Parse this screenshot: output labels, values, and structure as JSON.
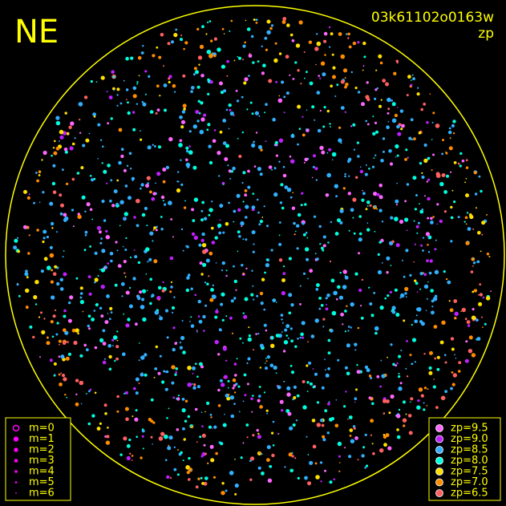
{
  "title": "NE",
  "image_id": "03k61102o0163w",
  "mode": "zp",
  "magnitude_legend": {
    "items": [
      "m=0",
      "m=1",
      "m=2",
      "m=3",
      "m=4",
      "m=5",
      "m=6"
    ]
  },
  "zp_legend": {
    "items": [
      {
        "label": "zp=9.5",
        "color": "#ff66ff"
      },
      {
        "label": "zp=9.0",
        "color": "#c020ff"
      },
      {
        "label": "zp=8.5",
        "color": "#30b0ff"
      },
      {
        "label": "zp=8.0",
        "color": "#00ffe0"
      },
      {
        "label": "zp=7.5",
        "color": "#ffe000"
      },
      {
        "label": "zp=7.0",
        "color": "#ff8c00"
      },
      {
        "label": "zp=6.5",
        "color": "#ff6060"
      }
    ]
  }
}
